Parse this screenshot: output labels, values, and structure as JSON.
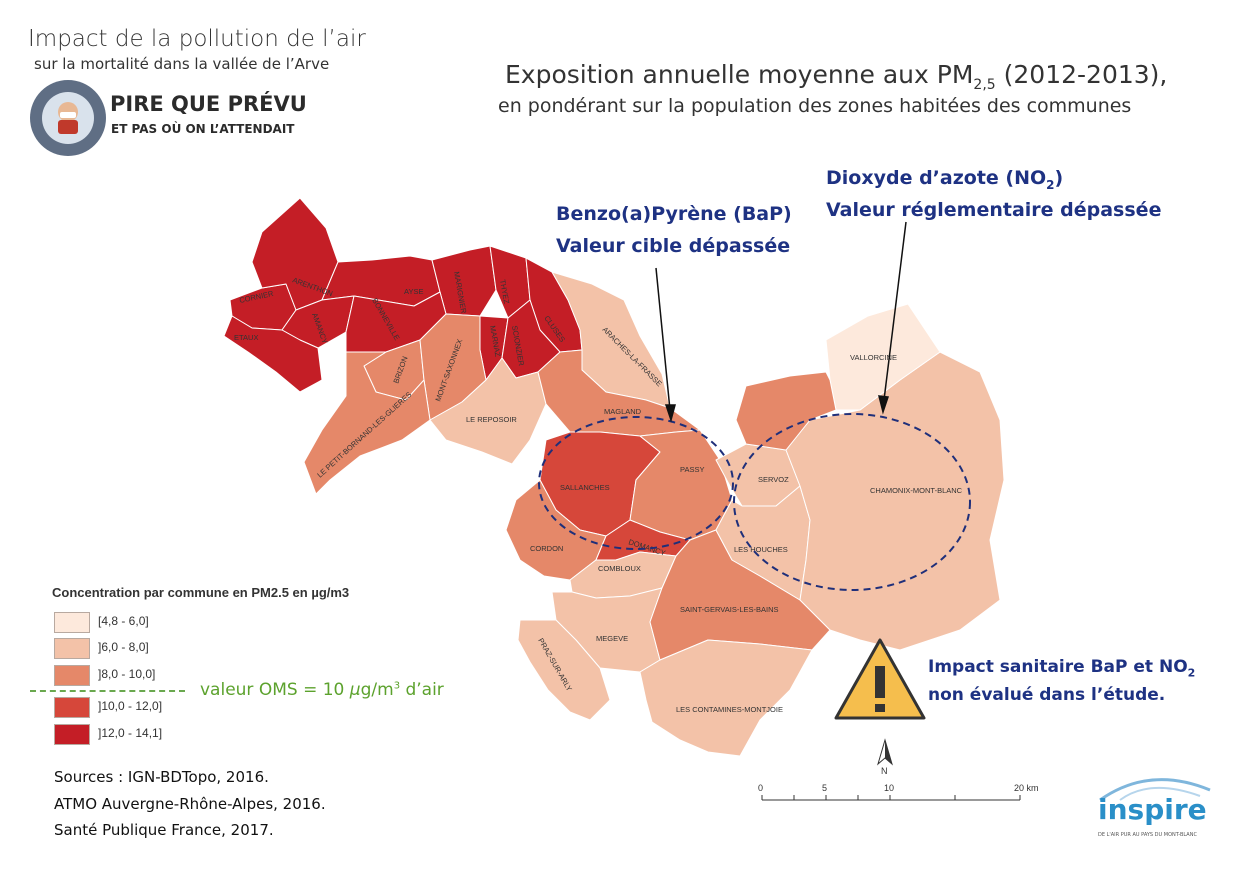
{
  "header": {
    "title": "Impact de la pollution de l’air",
    "subtitle": "sur la mortalité dans la vallée de l’Arve",
    "campaign_title": "PIRE QUE PRÉVU",
    "campaign_subtitle": "ET PAS OÙ ON L’ATTENDAIT"
  },
  "main": {
    "title_prefix": "Exposition annuelle moyenne aux PM",
    "title_sub": "2,5",
    "title_suffix": " (2012-2013),",
    "subtitle": "en pondérant sur la population des zones habitées des communes"
  },
  "annotations": {
    "no2_title": "Dioxyde d’azote (NO",
    "no2_sub": "2",
    "no2_close": ")",
    "no2_text": "Valeur réglementaire dépassée",
    "bap_title": "Benzo(a)Pyrène (BaP)",
    "bap_text": "Valeur cible dépassée",
    "impact_line1_prefix": "Impact sanitaire BaP et NO",
    "impact_line1_sub": "2",
    "impact_line2": "non évalué dans l’étude."
  },
  "legend": {
    "title": "Concentration par commune en PM2.5 en µg/m3",
    "classes": [
      {
        "label": "[4,8 - 6,0]",
        "color": "#fde9dc"
      },
      {
        "label": "]6,0 - 8,0]",
        "color": "#f3c2a8"
      },
      {
        "label": "]8,0 - 10,0]",
        "color": "#e58869"
      },
      {
        "label": "]10,0 - 12,0]",
        "color": "#d6473a"
      },
      {
        "label": "]12,0 - 14,1]",
        "color": "#c41e26"
      }
    ],
    "oms_prefix": "valeur OMS = 10 ",
    "oms_mu": "µ",
    "oms_unit": "g/m",
    "oms_sup": "3",
    "oms_suffix": " d’air"
  },
  "sources": [
    "Sources : IGN-BDTopo, 2016.",
    "ATMO Auvergne-Rhône-Alpes, 2016.",
    "Santé Publique France, 2017."
  ],
  "communes": [
    {
      "name": "CORNIER",
      "class": 4
    },
    {
      "name": "ARENTHON",
      "class": 4
    },
    {
      "name": "AYSE",
      "class": 4
    },
    {
      "name": "MARIGNIER",
      "class": 4
    },
    {
      "name": "THYEZ",
      "class": 4
    },
    {
      "name": "AMANCY",
      "class": 4
    },
    {
      "name": "BONNEVILLE",
      "class": 4
    },
    {
      "name": "ETAUX",
      "class": 4
    },
    {
      "name": "CLUSES",
      "class": 4
    },
    {
      "name": "MARNAZ",
      "class": 4
    },
    {
      "name": "SCIONZIER",
      "class": 4
    },
    {
      "name": "BRIZON",
      "class": 2
    },
    {
      "name": "MONT-SAXONNEX",
      "class": 2
    },
    {
      "name": "LE PETIT-BORNAND-LES-GLIERES",
      "class": 2
    },
    {
      "name": "LE REPOSOIR",
      "class": 1
    },
    {
      "name": "ARACHES-LA-FRASSE",
      "class": 1
    },
    {
      "name": "MAGLAND",
      "class": 2
    },
    {
      "name": "SALLANCHES",
      "class": 3
    },
    {
      "name": "PASSY",
      "class": 2
    },
    {
      "name": "CORDON",
      "class": 2
    },
    {
      "name": "DOMANCY",
      "class": 3
    },
    {
      "name": "COMBLOUX",
      "class": 1
    },
    {
      "name": "MEGEVE",
      "class": 1
    },
    {
      "name": "PRAZ-SUR-ARLY",
      "class": 1
    },
    {
      "name": "SAINT-GERVAIS-LES-BAINS",
      "class": 2
    },
    {
      "name": "LES CONTAMINES-MONTJOIE",
      "class": 1
    },
    {
      "name": "SERVOZ",
      "class": 1
    },
    {
      "name": "LES HOUCHES",
      "class": 1
    },
    {
      "name": "CHAMONIX-MONT-BLANC",
      "class": 1
    },
    {
      "name": "VALLORCINE",
      "class": 0
    }
  ],
  "map_scale": {
    "ticks": [
      "0",
      "5",
      "10",
      "20 km"
    ],
    "north": "N"
  },
  "brand": {
    "name": "inspire",
    "tagline": "DE L'AIR PUR AU PAYS DU MONT-BLANC"
  },
  "icons": [
    "warning-icon",
    "north-arrow-icon",
    "campaign-badge-icon"
  ]
}
